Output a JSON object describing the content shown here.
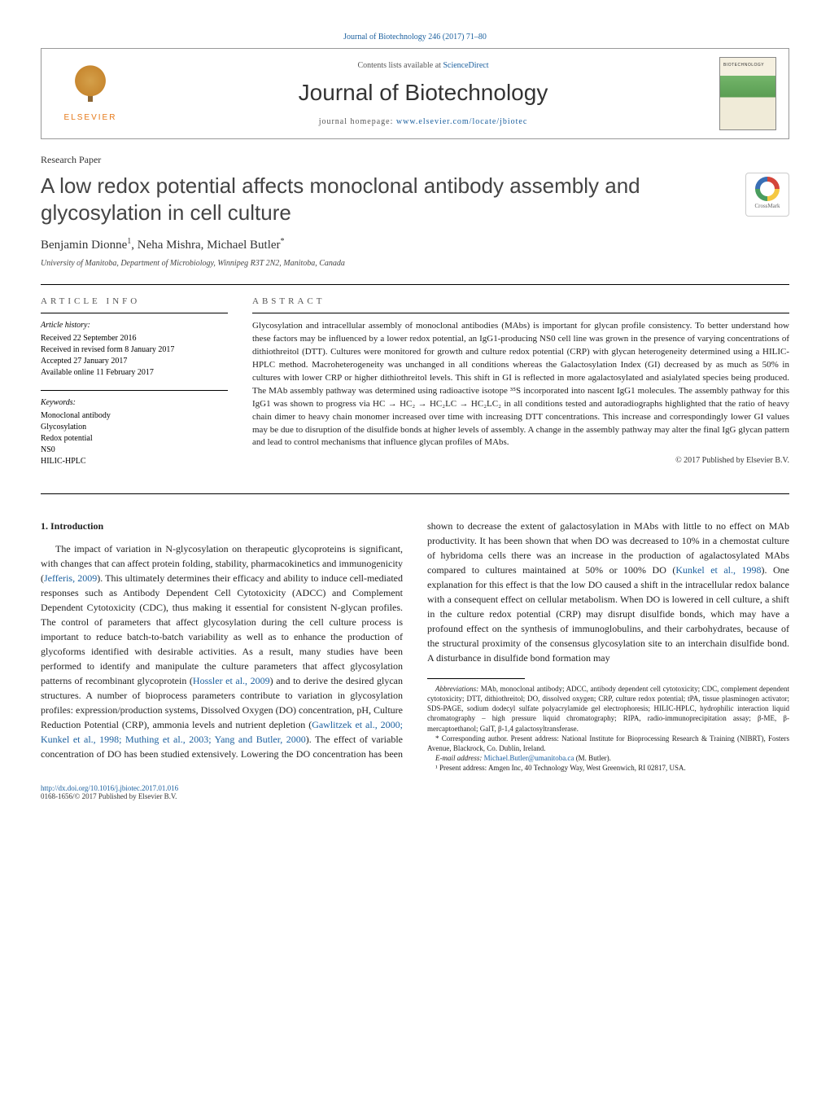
{
  "journal_ref": "Journal of Biotechnology 246 (2017) 71–80",
  "header": {
    "contents_prefix": "Contents lists available at ",
    "contents_link": "ScienceDirect",
    "journal_name": "Journal of Biotechnology",
    "homepage_prefix": "journal homepage: ",
    "homepage_link": "www.elsevier.com/locate/jbiotec",
    "elsevier": "ELSEVIER"
  },
  "article_type": "Research Paper",
  "title": "A low redox potential affects monoclonal antibody assembly and glycosylation in cell culture",
  "crossmark": "CrossMark",
  "authors_html": "Benjamin Dionne<sup>1</sup>, Neha Mishra, Michael Butler<sup>*</sup>",
  "affiliation": "University of Manitoba, Department of Microbiology, Winnipeg R3T 2N2, Manitoba, Canada",
  "info": {
    "article_info_heading": "ARTICLE INFO",
    "history_heading": "Article history:",
    "history_lines": [
      "Received 22 September 2016",
      "Received in revised form 8 January 2017",
      "Accepted 27 January 2017",
      "Available online 11 February 2017"
    ],
    "keywords_heading": "Keywords:",
    "keywords": [
      "Monoclonal antibody",
      "Glycosylation",
      "Redox potential",
      "NS0",
      "HILIC-HPLC"
    ]
  },
  "abstract": {
    "heading": "ABSTRACT",
    "text": "Glycosylation and intracellular assembly of monoclonal antibodies (MAbs) is important for glycan profile consistency. To better understand how these factors may be influenced by a lower redox potential, an IgG1-producing NS0 cell line was grown in the presence of varying concentrations of dithiothreitol (DTT). Cultures were monitored for growth and culture redox potential (CRP) with glycan heterogeneity determined using a HILIC-HPLC method. Macroheterogeneity was unchanged in all conditions whereas the Galactosylation Index (GI) decreased by as much as 50% in cultures with lower CRP or higher dithiothreitol levels. This shift in GI is reflected in more agalactosylated and asialylated species being produced. The MAb assembly pathway was determined using radioactive isotope ³⁵S incorporated into nascent IgG1 molecules. The assembly pathway for this IgG1 was shown to progress via HC → HC₂ → HC₂LC → HC₂LC₂ in all conditions tested and autoradiographs highlighted that the ratio of heavy chain dimer to heavy chain monomer increased over time with increasing DTT concentrations. This increase and correspondingly lower GI values may be due to disruption of the disulfide bonds at higher levels of assembly. A change in the assembly pathway may alter the final IgG glycan pattern and lead to control mechanisms that influence glycan profiles of MAbs.",
    "copyright": "© 2017 Published by Elsevier B.V."
  },
  "body": {
    "intro_heading": "1. Introduction",
    "para1_pre": "The impact of variation in N-glycosylation on therapeutic glycoproteins is significant, with changes that can affect protein folding, stability, pharmacokinetics and immunogenicity (",
    "para1_link1": "Jefferis, 2009",
    "para1_post1": "). This ultimately determines their efficacy and ability to induce cell-mediated responses such as Antibody Dependent Cell Cytotoxicity (ADCC) and Complement Dependent Cytotoxicity (CDC), thus making it essential for consistent N-glycan profiles. The control of parameters that affect glycosylation during the cell culture process is important to reduce batch-to-batch variability as well",
    "para2_pre": "as to enhance the production of glycoforms identified with desirable activities. As a result, many studies have been performed to identify and manipulate the culture parameters that affect glycosylation patterns of recombinant glycoprotein (",
    "para2_link1": "Hossler et al., 2009",
    "para2_mid1": ") and to derive the desired glycan structures. A number of bioprocess parameters contribute to variation in glycosylation profiles: expression/production systems, Dissolved Oxygen (DO) concentration, pH, Culture Reduction Potential (CRP), ammonia levels and nutrient depletion (",
    "para2_link2": "Gawlitzek et al., 2000; Kunkel et al., 1998; Muthing et al., 2003; Yang and Butler, 2000",
    "para2_mid2": "). The effect of variable concentration of DO has been studied extensively. Lowering the DO concentration has been shown to decrease the extent of galactosylation in MAbs with little to no effect on MAb productivity. It has been shown that when DO was decreased to 10% in a chemostat culture of hybridoma cells there was an increase in the production of agalactosylated MAbs compared to cultures maintained at 50% or 100% DO (",
    "para2_link3": "Kunkel et al., 1998",
    "para2_post": "). One explanation for this effect is that the low DO caused a shift in the intracellular redox balance with a consequent effect on cellular metabolism. When DO is lowered in cell culture, a shift in the culture redox potential (CRP) may disrupt disulfide bonds, which may have a profound effect on the synthesis of immunoglobulins, and their carbohydrates, because of the structural proximity of the consensus glycosylation site to an interchain disulfide bond. A disturbance in disulfide bond formation may"
  },
  "footnotes": {
    "abbrev_label": "Abbreviations:",
    "abbrev_text": " MAb, monoclonal antibody; ADCC, antibody dependent cell cytotoxicity; CDC, complement dependent cytotoxicity; DTT, dithiothreitol; DO, dissolved oxygen; CRP, culture redox potential; tPA, tissue plasminogen activator; SDS-PAGE, sodium dodecyl sulfate polyacrylamide gel electrophoresis; HILIC-HPLC, hydrophilic interaction liquid chromatography – high pressure liquid chromatography; RIPA, radio-immunoprecipitation assay; β-ME, β-mercaptoethanol; GalT, β-1,4 galactosyltransferase.",
    "corr_label": "* Corresponding author. Present address: National Institute for Bioprocessing Research & Training (NIBRT), Fosters Avenue, Blackrock, Co. Dublin, Ireland.",
    "email_label": "E-mail address: ",
    "email": "Michael.Butler@umanitoba.ca",
    "email_suffix": " (M. Butler).",
    "note1": "¹ Present address: Amgen Inc, 40 Technology Way, West Greenwich, RI 02817, USA."
  },
  "footer": {
    "doi": "http://dx.doi.org/10.1016/j.jbiotec.2017.01.016",
    "issn": "0168-1656/© 2017 Published by Elsevier B.V."
  },
  "colors": {
    "link": "#1a5f9e",
    "text": "#222222",
    "elsevier_orange": "#e67817"
  }
}
